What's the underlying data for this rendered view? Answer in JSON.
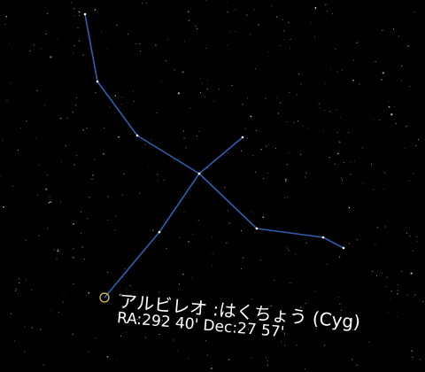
{
  "sky": {
    "line_color": "#2f5fb0",
    "star_color": "#ffffff",
    "marker_color": "#e6c84a"
  },
  "selected_star": {
    "name": "アルビレオ :はくちょう (Cyg)",
    "coordinates": "RA:292 40' Dec:27 57'"
  }
}
